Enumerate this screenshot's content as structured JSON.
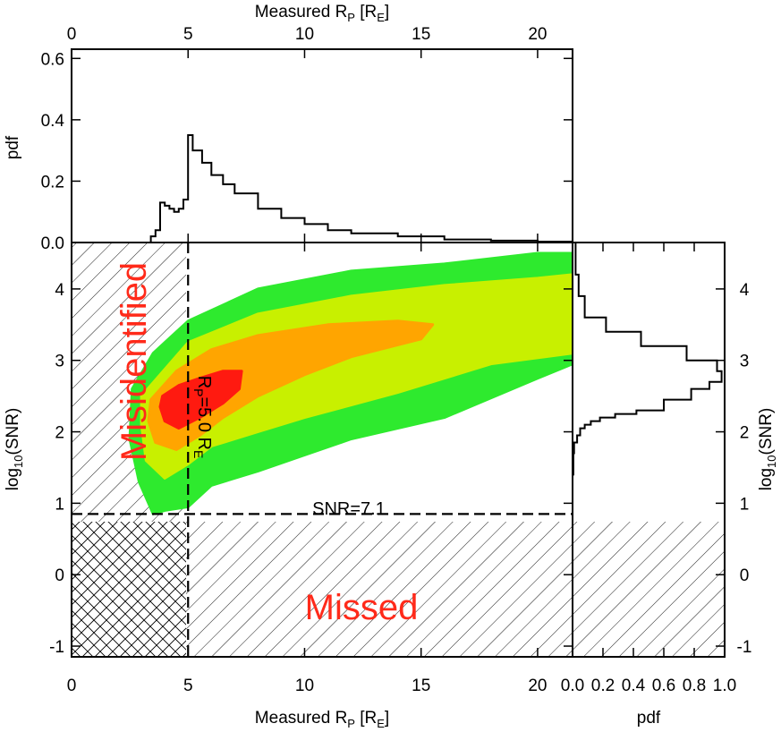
{
  "chart_data": [
    {
      "id": "top",
      "type": "line",
      "xlabel": "Measured R_P [R_E]",
      "ylabel": "pdf",
      "xlim": [
        0,
        21.5
      ],
      "ylim": [
        0,
        0.63
      ],
      "xticks": [
        "0",
        "5",
        "10",
        "15",
        "20"
      ],
      "yticks": [
        "0.0",
        "0.2",
        "0.4",
        "0.6"
      ],
      "series": [
        {
          "x": [
            0,
            3.2,
            3.4,
            3.6,
            3.8,
            4.0,
            4.2,
            4.4,
            4.6,
            4.8,
            5.0,
            5.2,
            5.6,
            6.0,
            6.5,
            7.0,
            8.0,
            9.0,
            10.0,
            11.0,
            12.0,
            14.0,
            16.0,
            18.0,
            20.0,
            21.5
          ],
          "y": [
            0,
            0.0,
            0.02,
            0.04,
            0.13,
            0.12,
            0.11,
            0.1,
            0.11,
            0.14,
            0.35,
            0.3,
            0.26,
            0.22,
            0.19,
            0.16,
            0.11,
            0.08,
            0.06,
            0.04,
            0.03,
            0.02,
            0.01,
            0.006,
            0.003,
            0.001
          ]
        }
      ]
    },
    {
      "id": "main",
      "type": "heatmap",
      "xlabel": "Measured R_P [R_E]",
      "ylabel": "log_10(SNR)",
      "xlim": [
        0,
        21.5
      ],
      "ylim": [
        -1.15,
        4.65
      ],
      "xticks": [
        "0",
        "5",
        "10",
        "15",
        "20"
      ],
      "yticks": [
        "-1",
        "0",
        "1",
        "2",
        "3",
        "4"
      ],
      "thresholds": {
        "radius": 5.0,
        "log_snr": 0.85
      },
      "contour_levels": [
        {
          "color": "#2eea2e",
          "points": [
            [
              2.6,
              2.6
            ],
            [
              3.5,
              3.1
            ],
            [
              5.0,
              3.55
            ],
            [
              8.0,
              4.0
            ],
            [
              12.0,
              4.25
            ],
            [
              16.0,
              4.35
            ],
            [
              20.0,
              4.5
            ],
            [
              21.5,
              4.5
            ],
            [
              21.5,
              2.95
            ],
            [
              20.0,
              2.75
            ],
            [
              16.0,
              2.2
            ],
            [
              12.0,
              1.9
            ],
            [
              8.0,
              1.45
            ],
            [
              6.0,
              1.25
            ],
            [
              5.0,
              0.95
            ],
            [
              4.0,
              0.9
            ],
            [
              3.5,
              0.85
            ],
            [
              2.9,
              1.3
            ],
            [
              2.5,
              1.9
            ]
          ]
        },
        {
          "color": "#c8f000",
          "points": [
            [
              3.0,
              2.5
            ],
            [
              5.0,
              3.25
            ],
            [
              8.0,
              3.65
            ],
            [
              12.0,
              3.9
            ],
            [
              16.0,
              4.05
            ],
            [
              20.0,
              4.15
            ],
            [
              21.5,
              4.2
            ],
            [
              21.5,
              3.1
            ],
            [
              18.0,
              2.95
            ],
            [
              14.0,
              2.55
            ],
            [
              10.0,
              2.2
            ],
            [
              8.0,
              2.0
            ],
            [
              6.0,
              1.8
            ],
            [
              5.0,
              1.55
            ],
            [
              4.0,
              1.35
            ],
            [
              3.2,
              1.6
            ],
            [
              3.0,
              2.1
            ]
          ]
        },
        {
          "color": "#ffa500",
          "points": [
            [
              3.4,
              2.45
            ],
            [
              4.5,
              2.85
            ],
            [
              6.0,
              3.15
            ],
            [
              8.0,
              3.35
            ],
            [
              11.0,
              3.5
            ],
            [
              14.0,
              3.55
            ],
            [
              15.5,
              3.5
            ],
            [
              15.0,
              3.3
            ],
            [
              12.0,
              3.05
            ],
            [
              10.0,
              2.8
            ],
            [
              8.0,
              2.5
            ],
            [
              6.5,
              2.2
            ],
            [
              5.5,
              1.95
            ],
            [
              4.5,
              1.75
            ],
            [
              3.6,
              1.85
            ],
            [
              3.3,
              2.15
            ]
          ]
        },
        {
          "color": "#ff1a10",
          "points": [
            [
              3.9,
              2.5
            ],
            [
              4.6,
              2.65
            ],
            [
              5.5,
              2.75
            ],
            [
              6.5,
              2.85
            ],
            [
              7.3,
              2.85
            ],
            [
              7.2,
              2.6
            ],
            [
              6.5,
              2.4
            ],
            [
              5.5,
              2.2
            ],
            [
              4.6,
              2.05
            ],
            [
              4.0,
              2.15
            ],
            [
              3.8,
              2.35
            ]
          ]
        }
      ],
      "annotations": [
        {
          "text": "Misidentified",
          "color": "#ff2a1a"
        },
        {
          "text": "Missed",
          "color": "#ff2a1a"
        },
        {
          "text": "SNR=7.1",
          "color": "#000000"
        },
        {
          "text": "R_P=5.0 R_E",
          "color": "#000000"
        }
      ]
    },
    {
      "id": "right",
      "type": "line",
      "xlabel": "pdf",
      "ylabel": "log_10(SNR)",
      "xlim": [
        0,
        1.0
      ],
      "ylim": [
        -1.15,
        4.65
      ],
      "xticks": [
        "0.0",
        "0.2",
        "0.4",
        "0.6",
        "0.8",
        "1.0"
      ],
      "yticks": [
        "-1",
        "0",
        "1",
        "2",
        "3",
        "4"
      ],
      "series": [
        {
          "x": [
            0.0,
            0.005,
            0.01,
            0.03,
            0.05,
            0.08,
            0.12,
            0.18,
            0.28,
            0.42,
            0.6,
            0.78,
            0.9,
            0.98,
            0.95,
            0.75,
            0.45,
            0.22,
            0.08,
            0.04,
            0.02,
            0.0
          ],
          "y": [
            -1.15,
            1.4,
            1.7,
            1.85,
            1.95,
            2.05,
            2.1,
            2.15,
            2.2,
            2.25,
            2.3,
            2.45,
            2.6,
            2.7,
            2.85,
            3.0,
            3.2,
            3.4,
            3.6,
            3.9,
            4.2,
            4.65
          ]
        }
      ]
    }
  ]
}
